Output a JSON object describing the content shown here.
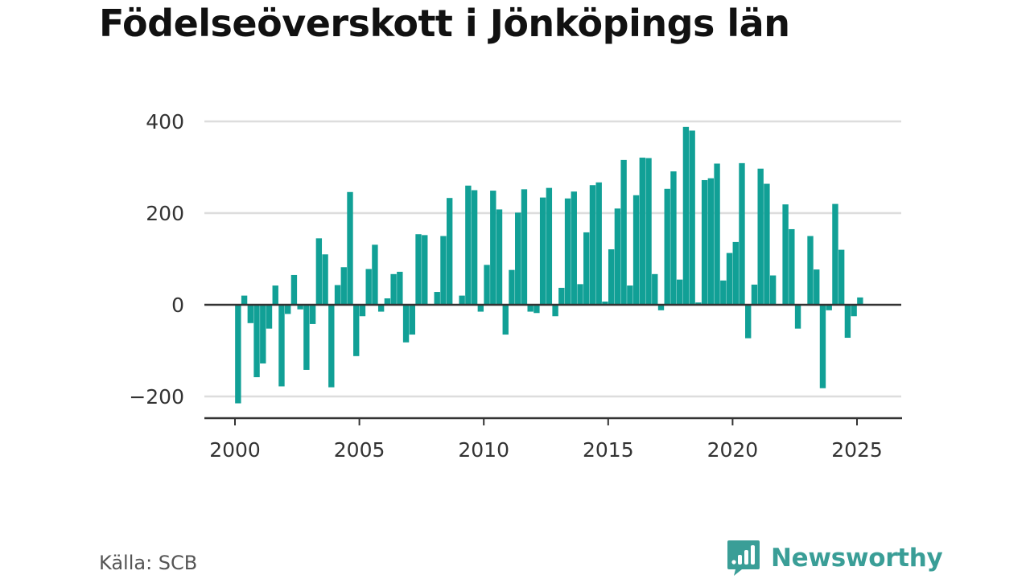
{
  "title": "Födelseöverskott i Jönköpings län",
  "source": "Källa: SCB",
  "brand": {
    "name": "Newsworthy",
    "icon": "newsworthy-logo-icon",
    "color": "#3a9e97"
  },
  "colors": {
    "bar": "#11a096",
    "grid": "#dddddd",
    "axis": "#333333"
  },
  "chart_data": {
    "type": "bar",
    "ylim": [
      -250,
      450
    ],
    "yticks": [
      -200,
      0,
      200,
      400
    ],
    "ytick_labels": [
      "−200",
      "0",
      "200",
      "400"
    ],
    "xticks": [
      2000,
      2005,
      2010,
      2015,
      2020,
      2025
    ],
    "xtick_labels": [
      "2000",
      "2005",
      "2010",
      "2015",
      "2020",
      "2025"
    ],
    "xlim": [
      1998.8,
      2026.75
    ],
    "grid": true,
    "bar_width_years": 0.2,
    "x": [
      2000.125,
      2000.375,
      2000.625,
      2000.875,
      2001.125,
      2001.375,
      2001.625,
      2001.875,
      2002.125,
      2002.375,
      2002.625,
      2002.875,
      2003.125,
      2003.375,
      2003.625,
      2003.875,
      2004.125,
      2004.375,
      2004.625,
      2004.875,
      2005.125,
      2005.375,
      2005.625,
      2005.875,
      2006.125,
      2006.375,
      2006.625,
      2006.875,
      2007.125,
      2007.375,
      2007.625,
      2007.875,
      2008.125,
      2008.375,
      2008.625,
      2008.875,
      2009.125,
      2009.375,
      2009.625,
      2009.875,
      2010.125,
      2010.375,
      2010.625,
      2010.875,
      2011.125,
      2011.375,
      2011.625,
      2011.875,
      2012.125,
      2012.375,
      2012.625,
      2012.875,
      2013.125,
      2013.375,
      2013.625,
      2013.875,
      2014.125,
      2014.375,
      2014.625,
      2014.875,
      2015.125,
      2015.375,
      2015.625,
      2015.875,
      2016.125,
      2016.375,
      2016.625,
      2016.875,
      2017.125,
      2017.375,
      2017.625,
      2017.875,
      2018.125,
      2018.375,
      2018.625,
      2018.875,
      2019.125,
      2019.375,
      2019.625,
      2019.875,
      2020.125,
      2020.375,
      2020.625,
      2020.875,
      2021.125,
      2021.375,
      2021.625,
      2021.875,
      2022.125,
      2022.375,
      2022.625,
      2022.875,
      2023.125,
      2023.375,
      2023.625,
      2023.875,
      2024.125,
      2024.375,
      2024.625,
      2024.875,
      2025.125,
      2025.375
    ],
    "values": [
      -215,
      20,
      -40,
      -158,
      -128,
      -52,
      42,
      -178,
      -20,
      65,
      -10,
      -142,
      -42,
      145,
      110,
      -180,
      43,
      82,
      246,
      -112,
      -25,
      78,
      131,
      -15,
      14,
      67,
      72,
      -82,
      -65,
      154,
      152,
      0,
      28,
      150,
      233,
      0,
      20,
      260,
      250,
      -15,
      87,
      249,
      208,
      -65,
      76,
      201,
      252,
      -15,
      -18,
      234,
      255,
      -25,
      37,
      232,
      247,
      45,
      158,
      261,
      267,
      7,
      121,
      210,
      316,
      42,
      239,
      321,
      320,
      67,
      -12,
      253,
      291,
      55,
      388,
      380,
      5,
      272,
      276,
      308,
      53,
      113,
      137,
      309,
      -73,
      44,
      297,
      264,
      64,
      0,
      219,
      165,
      -52,
      0,
      150,
      77,
      -182,
      -12,
      220,
      120,
      -72,
      -25,
      16,
      0
    ]
  }
}
